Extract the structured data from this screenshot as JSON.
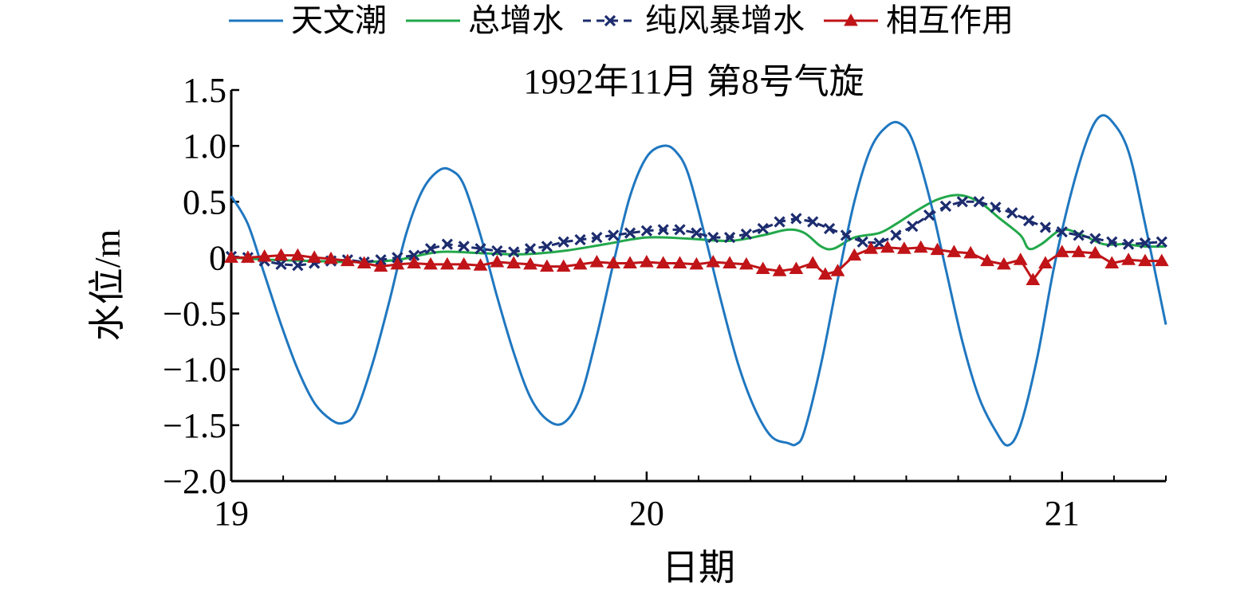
{
  "chart_data": {
    "type": "line",
    "title": "1992年11月 第8号气旋",
    "xlabel": "日期",
    "ylabel": "水位/m",
    "xlim": [
      19.0,
      21.25
    ],
    "ylim": [
      -2.0,
      1.5
    ],
    "xticks": [
      19,
      20,
      21
    ],
    "xtick_labels": [
      "19",
      "20",
      "21"
    ],
    "yticks": [
      1.5,
      1.0,
      0.5,
      0,
      -0.5,
      -1.0,
      -1.5,
      -2.0
    ],
    "ytick_labels": [
      "1.5",
      "1.0",
      "0.5",
      "0",
      "−0.5",
      "−1.0",
      "−1.5",
      "−2.0"
    ],
    "grid": false,
    "legend_position": "top",
    "series": [
      {
        "name": "天文潮",
        "color": "#1f77c0",
        "marker": "none",
        "x": [
          19.0,
          19.04,
          19.08,
          19.12,
          19.16,
          19.2,
          19.24,
          19.27,
          19.3,
          19.34,
          19.38,
          19.42,
          19.46,
          19.5,
          19.53,
          19.56,
          19.6,
          19.64,
          19.68,
          19.72,
          19.76,
          19.8,
          19.84,
          19.88,
          19.92,
          19.96,
          20.0,
          20.04,
          20.07,
          20.1,
          20.14,
          20.18,
          20.22,
          20.26,
          20.3,
          20.34,
          20.36,
          20.38,
          20.42,
          20.46,
          20.5,
          20.54,
          20.58,
          20.61,
          20.64,
          20.68,
          20.72,
          20.76,
          20.8,
          20.84,
          20.87,
          20.9,
          20.94,
          20.98,
          21.02,
          21.06,
          21.09,
          21.12,
          21.16,
          21.2,
          21.25
        ],
        "values": [
          0.55,
          0.3,
          -0.15,
          -0.6,
          -1.0,
          -1.3,
          -1.45,
          -1.48,
          -1.38,
          -0.95,
          -0.4,
          0.2,
          0.6,
          0.78,
          0.78,
          0.65,
          0.2,
          -0.35,
          -0.85,
          -1.25,
          -1.45,
          -1.48,
          -1.25,
          -0.7,
          -0.05,
          0.55,
          0.9,
          1.0,
          0.95,
          0.75,
          0.2,
          -0.4,
          -0.95,
          -1.35,
          -1.6,
          -1.66,
          -1.67,
          -1.55,
          -0.95,
          -0.2,
          0.5,
          0.98,
          1.18,
          1.2,
          1.05,
          0.55,
          -0.1,
          -0.75,
          -1.25,
          -1.55,
          -1.68,
          -1.5,
          -0.9,
          -0.1,
          0.55,
          1.05,
          1.26,
          1.22,
          0.95,
          0.3,
          -0.6
        ]
      },
      {
        "name": "总增水",
        "color": "#22a84b",
        "marker": "none",
        "x": [
          19.0,
          19.1,
          19.2,
          19.3,
          19.4,
          19.5,
          19.6,
          19.7,
          19.8,
          19.9,
          20.0,
          20.1,
          20.2,
          20.28,
          20.34,
          20.38,
          20.42,
          20.45,
          20.5,
          20.56,
          20.6,
          20.65,
          20.7,
          20.75,
          20.8,
          20.85,
          20.9,
          20.92,
          20.95,
          21.0,
          21.05,
          21.1,
          21.15,
          21.2,
          21.25
        ],
        "values": [
          0.0,
          -0.02,
          -0.03,
          -0.04,
          -0.02,
          0.05,
          0.04,
          0.03,
          0.06,
          0.12,
          0.18,
          0.17,
          0.15,
          0.2,
          0.25,
          0.22,
          0.1,
          0.08,
          0.18,
          0.22,
          0.3,
          0.42,
          0.52,
          0.56,
          0.5,
          0.35,
          0.2,
          0.08,
          0.12,
          0.25,
          0.2,
          0.12,
          0.12,
          0.1,
          0.1
        ]
      },
      {
        "name": "纯风暴增水",
        "color": "#1c2c6e",
        "marker": "x",
        "x": [
          19.0,
          19.04,
          19.08,
          19.12,
          19.16,
          19.2,
          19.24,
          19.28,
          19.32,
          19.36,
          19.4,
          19.44,
          19.48,
          19.52,
          19.56,
          19.6,
          19.64,
          19.68,
          19.72,
          19.76,
          19.8,
          19.84,
          19.88,
          19.92,
          19.96,
          20.0,
          20.04,
          20.08,
          20.12,
          20.16,
          20.2,
          20.24,
          20.28,
          20.32,
          20.36,
          20.4,
          20.44,
          20.48,
          20.52,
          20.56,
          20.6,
          20.64,
          20.68,
          20.72,
          20.76,
          20.8,
          20.84,
          20.88,
          20.92,
          20.96,
          21.0,
          21.04,
          21.08,
          21.12,
          21.16,
          21.2,
          21.24
        ],
        "values": [
          0.01,
          0.0,
          -0.03,
          -0.06,
          -0.07,
          -0.05,
          -0.03,
          -0.02,
          -0.04,
          -0.02,
          0.0,
          0.02,
          0.08,
          0.12,
          0.1,
          0.08,
          0.06,
          0.05,
          0.08,
          0.1,
          0.14,
          0.16,
          0.18,
          0.2,
          0.22,
          0.24,
          0.25,
          0.25,
          0.22,
          0.18,
          0.18,
          0.21,
          0.26,
          0.32,
          0.35,
          0.32,
          0.26,
          0.2,
          0.14,
          0.13,
          0.2,
          0.28,
          0.38,
          0.46,
          0.5,
          0.5,
          0.45,
          0.4,
          0.33,
          0.27,
          0.23,
          0.2,
          0.17,
          0.14,
          0.12,
          0.13,
          0.14
        ]
      },
      {
        "name": "相互作用",
        "color": "#c01418",
        "marker": "triangle",
        "x": [
          19.0,
          19.04,
          19.08,
          19.12,
          19.16,
          19.2,
          19.24,
          19.28,
          19.32,
          19.36,
          19.4,
          19.44,
          19.48,
          19.52,
          19.56,
          19.6,
          19.64,
          19.68,
          19.72,
          19.76,
          19.8,
          19.84,
          19.88,
          19.92,
          19.96,
          20.0,
          20.04,
          20.08,
          20.12,
          20.16,
          20.2,
          20.24,
          20.28,
          20.32,
          20.36,
          20.4,
          20.43,
          20.46,
          20.5,
          20.54,
          20.58,
          20.62,
          20.66,
          20.7,
          20.74,
          20.78,
          20.82,
          20.86,
          20.9,
          20.93,
          20.96,
          21.0,
          21.04,
          21.08,
          21.12,
          21.16,
          21.2,
          21.24
        ],
        "values": [
          0.0,
          0.0,
          0.01,
          0.02,
          0.02,
          0.0,
          -0.01,
          -0.03,
          -0.05,
          -0.08,
          -0.06,
          -0.05,
          -0.06,
          -0.06,
          -0.06,
          -0.07,
          -0.04,
          -0.05,
          -0.06,
          -0.08,
          -0.08,
          -0.06,
          -0.04,
          -0.05,
          -0.05,
          -0.04,
          -0.05,
          -0.05,
          -0.06,
          -0.04,
          -0.05,
          -0.06,
          -0.1,
          -0.12,
          -0.1,
          -0.05,
          -0.15,
          -0.12,
          0.02,
          0.08,
          0.09,
          0.08,
          0.09,
          0.07,
          0.05,
          0.04,
          -0.03,
          -0.06,
          -0.02,
          -0.2,
          -0.05,
          0.05,
          0.05,
          0.04,
          -0.05,
          -0.02,
          -0.03,
          -0.03
        ]
      }
    ]
  }
}
